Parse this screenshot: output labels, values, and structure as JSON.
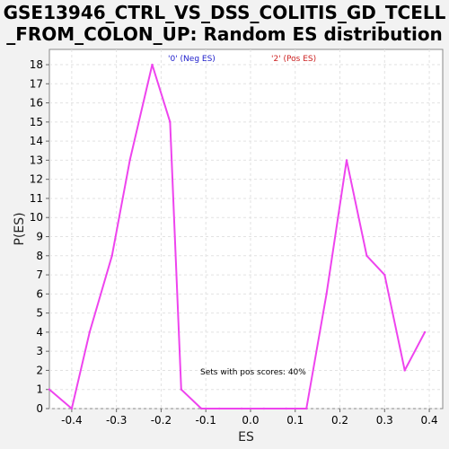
{
  "chart_data": {
    "type": "line",
    "title_line1": "GSE13946_CTRL_VS_DSS_COLITIS_GD_TCELL",
    "title_line2": "_FROM_COLON_UP: Random ES distribution",
    "xlabel": "ES",
    "ylabel": "P(ES)",
    "xlim": [
      -0.45,
      0.43
    ],
    "ylim": [
      0,
      18.8
    ],
    "x_ticks": [
      -0.4,
      -0.3,
      -0.2,
      -0.1,
      0.0,
      0.1,
      0.2,
      0.3,
      0.4
    ],
    "x_tick_labels": [
      "-0.4",
      "-0.3",
      "-0.2",
      "-0.1",
      "0.0",
      "0.1",
      "0.2",
      "0.3",
      "0.4"
    ],
    "y_ticks": [
      0,
      1,
      2,
      3,
      4,
      5,
      6,
      7,
      8,
      9,
      10,
      11,
      12,
      13,
      14,
      15,
      16,
      17,
      18
    ],
    "y_tick_labels": [
      "0",
      "1",
      "2",
      "3",
      "4",
      "5",
      "6",
      "7",
      "8",
      "9",
      "10",
      "11",
      "12",
      "13",
      "14",
      "15",
      "16",
      "17",
      "18"
    ],
    "grid": true,
    "series": [
      {
        "color": "#ee44ee",
        "x": [
          -0.45,
          -0.4,
          -0.36,
          -0.31,
          -0.27,
          -0.22,
          -0.18,
          -0.155,
          -0.11,
          -0.07,
          -0.02,
          0.03,
          0.08,
          0.125,
          0.17,
          0.215,
          0.26,
          0.3,
          0.345,
          0.39
        ],
        "y": [
          1,
          0,
          4,
          8,
          13,
          18,
          15,
          1,
          0,
          0,
          0,
          0,
          0,
          0,
          6,
          13,
          8,
          7,
          2,
          4
        ]
      }
    ],
    "legend": {
      "neg_label": "'0' (Neg ES)",
      "pos_label": "'2' (Pos ES)",
      "placement": "top"
    },
    "annotation": "Sets with pos scores: 40%"
  },
  "colors": {
    "line": "#ee44ee",
    "neg_legend": "#2020cc",
    "pos_legend": "#cc2020",
    "background": "#f2f2f2",
    "plot_background": "#ffffff"
  }
}
